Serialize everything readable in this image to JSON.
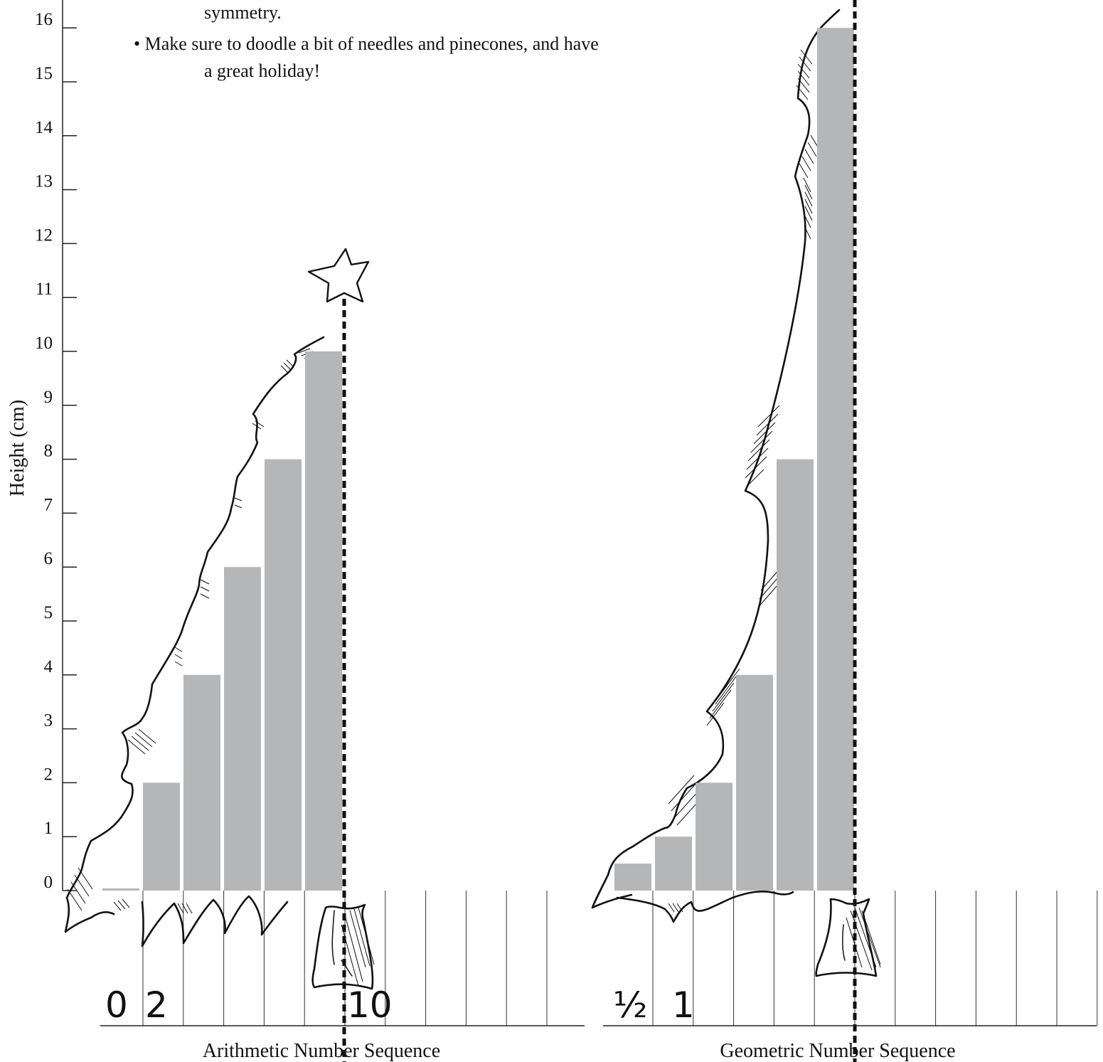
{
  "instructions": {
    "line1": "symmetry.",
    "line2": "• Make sure to doodle a bit of needles and pinecones, and have",
    "line3": "a great holiday!"
  },
  "colors": {
    "bar": "#b5b6b8",
    "ink": "#111111",
    "axis": "#222222"
  },
  "chart_data": [
    {
      "type": "bar",
      "xlabel": "Arithmetic Number Sequence",
      "ylabel": "Height (cm)",
      "ylim": [
        0,
        16
      ],
      "yticks": [
        "0",
        "1",
        "2",
        "3",
        "4",
        "5",
        "6",
        "7",
        "8",
        "9",
        "10",
        "11",
        "12",
        "13",
        "14",
        "15",
        "16"
      ],
      "values": [
        0,
        2,
        4,
        6,
        8,
        10
      ],
      "handwritten_labels": [
        "0",
        "2",
        "10"
      ],
      "decoration": "hand-drawn tree outline with star, dashed line of symmetry"
    },
    {
      "type": "bar",
      "xlabel": "Geometric Number Sequence",
      "ylim": [
        0,
        16
      ],
      "values": [
        0.5,
        1,
        2,
        4,
        8,
        16
      ],
      "handwritten_labels": [
        "½",
        "1"
      ],
      "decoration": "hand-drawn tree outline, dashed line of symmetry"
    }
  ]
}
